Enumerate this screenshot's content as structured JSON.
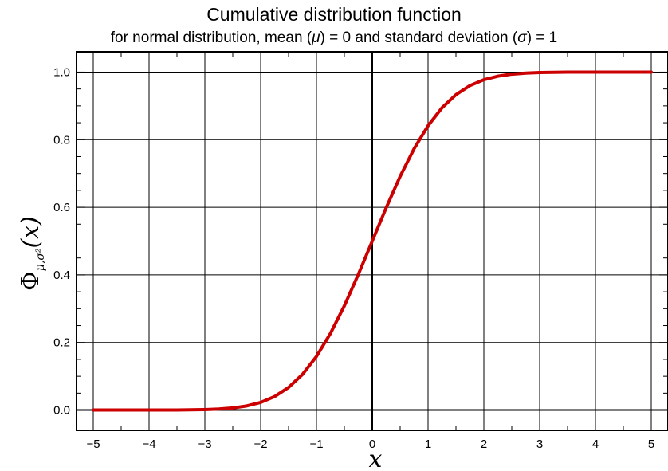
{
  "chart_data": {
    "type": "line",
    "title": "Cumulative distribution function",
    "subtitle": {
      "prefix": "for normal distribution, mean (",
      "mu": "μ",
      "middle": ") = 0 and standard deviation (",
      "sigma": "σ",
      "suffix": ") = 1"
    },
    "xlabel": "x",
    "ylabel": {
      "main": "Φ",
      "subscript": "μ,σ²",
      "argument": "(x)"
    },
    "xlim": [
      -5.3,
      5.3
    ],
    "ylim": [
      -0.06,
      1.06
    ],
    "xticks": [
      -5,
      -4,
      -3,
      -2,
      -1,
      0,
      1,
      2,
      3,
      4,
      5
    ],
    "xtick_labels": [
      "−5",
      "−4",
      "−3",
      "−2",
      "−1",
      "0",
      "1",
      "2",
      "3",
      "4",
      "5"
    ],
    "yticks": [
      0.0,
      0.2,
      0.4,
      0.6,
      0.8,
      1.0
    ],
    "ytick_labels": [
      "0.0",
      "0.2",
      "0.4",
      "0.6",
      "0.8",
      "1.0"
    ],
    "grid": true,
    "series": [
      {
        "color": "#cc0000",
        "x": [
          -5,
          -4.5,
          -4,
          -3.5,
          -3,
          -2.75,
          -2.5,
          -2.25,
          -2,
          -1.75,
          -1.5,
          -1.25,
          -1,
          -0.75,
          -0.5,
          -0.25,
          0,
          0.25,
          0.5,
          0.75,
          1,
          1.25,
          1.5,
          1.75,
          2,
          2.25,
          2.5,
          2.75,
          3,
          3.5,
          4,
          4.5,
          5
        ],
        "y": [
          3e-07,
          3.4e-06,
          3.17e-05,
          0.0002326,
          0.0013499,
          0.0029798,
          0.0062097,
          0.0122245,
          0.0227501,
          0.0400592,
          0.0668072,
          0.1056498,
          0.1586553,
          0.2266274,
          0.3085375,
          0.4012937,
          0.5,
          0.5987063,
          0.6914625,
          0.7733726,
          0.8413447,
          0.8943502,
          0.9331928,
          0.9599408,
          0.9772499,
          0.9877755,
          0.9937903,
          0.9970202,
          0.9986501,
          0.9997674,
          0.9999683,
          0.9999966,
          0.9999997
        ]
      }
    ]
  }
}
